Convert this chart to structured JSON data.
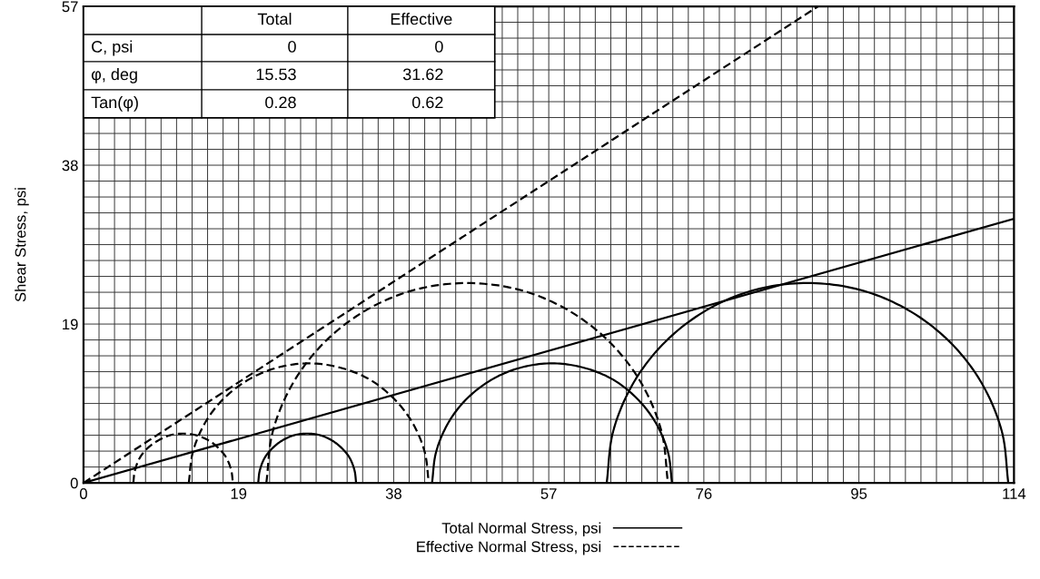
{
  "chart_data": {
    "type": "line",
    "ylabel": "Shear Stress, psi",
    "xlim": [
      0,
      114
    ],
    "ylim": [
      0,
      57
    ],
    "xticks": [
      0,
      {
        "value": 1.9,
        "label": null
      },
      {
        "value": 3.8,
        "label": null
      },
      {
        "value": 5.7,
        "label": null
      },
      {
        "value": 7.6,
        "label": null
      },
      {
        "value": 9.5,
        "label": null
      },
      {
        "value": 11.4,
        "label": null
      },
      {
        "value": 13.3,
        "label": null
      },
      {
        "value": 15.2,
        "label": null
      },
      {
        "value": 17.1,
        "label": null
      },
      19,
      {
        "value": 20.9,
        "label": null
      },
      {
        "value": 22.8,
        "label": null
      },
      {
        "value": 24.7,
        "label": null
      },
      {
        "value": 26.6,
        "label": null
      },
      {
        "value": 28.5,
        "label": null
      },
      {
        "value": 30.4,
        "label": null
      },
      {
        "value": 32.3,
        "label": null
      },
      {
        "value": 34.2,
        "label": null
      },
      {
        "value": 36.1,
        "label": null
      },
      38,
      {
        "value": 39.9,
        "label": null
      },
      {
        "value": 41.8,
        "label": null
      },
      {
        "value": 43.7,
        "label": null
      },
      {
        "value": 45.6,
        "label": null
      },
      {
        "value": 47.5,
        "label": null
      },
      {
        "value": 49.4,
        "label": null
      },
      {
        "value": 51.3,
        "label": null
      },
      {
        "value": 53.2,
        "label": null
      },
      {
        "value": 55.1,
        "label": null
      },
      57,
      {
        "value": 58.9,
        "label": null
      },
      {
        "value": 60.8,
        "label": null
      },
      {
        "value": 62.7,
        "label": null
      },
      {
        "value": 64.6,
        "label": null
      },
      {
        "value": 66.5,
        "label": null
      },
      {
        "value": 68.4,
        "label": null
      },
      {
        "value": 70.3,
        "label": null
      },
      {
        "value": 72.2,
        "label": null
      },
      {
        "value": 74.1,
        "label": null
      },
      76,
      {
        "value": 77.9,
        "label": null
      },
      {
        "value": 79.8,
        "label": null
      },
      {
        "value": 81.7,
        "label": null
      },
      {
        "value": 83.6,
        "label": null
      },
      {
        "value": 85.5,
        "label": null
      },
      {
        "value": 87.4,
        "label": null
      },
      {
        "value": 89.3,
        "label": null
      },
      {
        "value": 91.2,
        "label": null
      },
      {
        "value": 93.1,
        "label": null
      },
      95,
      {
        "value": 96.9,
        "label": null
      },
      {
        "value": 98.8,
        "label": null
      },
      {
        "value": 100.7,
        "label": null
      },
      {
        "value": 102.6,
        "label": null
      },
      {
        "value": 104.5,
        "label": null
      },
      {
        "value": 106.4,
        "label": null
      },
      {
        "value": 108.3,
        "label": null
      },
      {
        "value": 110.2,
        "label": null
      },
      {
        "value": 112.1,
        "label": null
      },
      114
    ],
    "yticks": [
      0,
      {
        "value": 1.9,
        "label": null
      },
      {
        "value": 3.8,
        "label": null
      },
      {
        "value": 5.7,
        "label": null
      },
      {
        "value": 7.6,
        "label": null
      },
      {
        "value": 9.5,
        "label": null
      },
      {
        "value": 11.4,
        "label": null
      },
      {
        "value": 13.3,
        "label": null
      },
      {
        "value": 15.2,
        "label": null
      },
      {
        "value": 17.1,
        "label": null
      },
      19,
      {
        "value": 20.9,
        "label": null
      },
      {
        "value": 22.8,
        "label": null
      },
      {
        "value": 24.7,
        "label": null
      },
      {
        "value": 26.6,
        "label": null
      },
      {
        "value": 28.5,
        "label": null
      },
      {
        "value": 30.4,
        "label": null
      },
      {
        "value": 32.3,
        "label": null
      },
      {
        "value": 34.2,
        "label": null
      },
      {
        "value": 36.1,
        "label": null
      },
      38,
      {
        "value": 39.9,
        "label": null
      },
      {
        "value": 41.8,
        "label": null
      },
      {
        "value": 43.7,
        "label": null
      },
      {
        "value": 45.6,
        "label": null
      },
      {
        "value": 47.5,
        "label": null
      },
      {
        "value": 49.4,
        "label": null
      },
      {
        "value": 51.3,
        "label": null
      },
      {
        "value": 53.2,
        "label": null
      },
      {
        "value": 55.1,
        "label": null
      },
      57
    ],
    "grid": true,
    "legend": "bottom",
    "series": [
      {
        "name": "Total Normal Stress, psi",
        "color": "#000000",
        "line_style": "solid",
        "x": [
          0,
          114
        ],
        "values": [
          0,
          31.6
        ]
      },
      {
        "name": "Effective Normal Stress, psi",
        "color": "#000000",
        "line_style": "dashed",
        "x": [
          0,
          90.0
        ],
        "values": [
          0,
          57
        ]
      },
      {
        "color": "#000000",
        "line_style": "dashed",
        "x": [
          6.1,
          6.3,
          6.9,
          7.9,
          9.2,
          10.6,
          12.2,
          13.8,
          15.3,
          16.5,
          17.5,
          18.1,
          18.3
        ],
        "values": [
          0,
          1.5,
          3.0,
          4.2,
          5.1,
          5.7,
          5.9,
          5.7,
          5.1,
          4.2,
          3.0,
          1.5,
          0
        ]
      },
      {
        "color": "#000000",
        "line_style": "solid",
        "x": [
          21.4,
          21.6,
          22.2,
          23.2,
          24.4,
          25.8,
          27.4,
          29.0,
          30.4,
          31.6,
          32.6,
          33.2,
          33.4
        ],
        "values": [
          0,
          1.5,
          3.0,
          4.2,
          5.1,
          5.7,
          5.9,
          5.7,
          5.1,
          4.2,
          3.0,
          1.5,
          0
        ]
      },
      {
        "color": "#000000",
        "line_style": "dashed",
        "x": [
          12.9,
          13.4,
          14.9,
          17.2,
          20.3,
          23.8,
          27.6,
          31.4,
          35.0,
          38.0,
          40.3,
          41.8,
          42.3
        ],
        "values": [
          0,
          3.7,
          7.2,
          10.1,
          12.4,
          13.8,
          14.3,
          13.8,
          12.4,
          10.1,
          7.2,
          3.7,
          0
        ]
      },
      {
        "color": "#000000",
        "line_style": "dashed",
        "x": [
          22.4,
          23.2,
          25.7,
          29.6,
          34.7,
          40.6,
          47.0,
          53.4,
          59.3,
          64.4,
          68.3,
          70.8,
          71.6
        ],
        "values": [
          0,
          6.2,
          12.0,
          16.9,
          20.7,
          23.1,
          23.9,
          23.1,
          20.7,
          16.9,
          12.0,
          6.2,
          0
        ]
      },
      {
        "color": "#000000",
        "line_style": "solid",
        "x": [
          42.7,
          43.2,
          44.7,
          47.0,
          50.1,
          53.6,
          57.4,
          61.2,
          64.8,
          67.8,
          70.1,
          71.6,
          72.1
        ],
        "values": [
          0,
          3.7,
          7.2,
          10.1,
          12.4,
          13.8,
          14.3,
          13.8,
          12.4,
          10.1,
          7.2,
          3.7,
          0
        ]
      },
      {
        "color": "#000000",
        "line_style": "solid",
        "x": [
          64.1,
          64.9,
          67.4,
          71.3,
          76.4,
          82.3,
          88.7,
          95.1,
          101.0,
          106.1,
          110.0,
          112.5,
          113.3
        ],
        "values": [
          0,
          6.2,
          12.0,
          16.9,
          20.7,
          23.1,
          23.9,
          23.1,
          20.7,
          16.9,
          12.0,
          6.2,
          0
        ]
      }
    ],
    "annotations": [
      "Total",
      "Effective",
      "C, psi",
      "0",
      "0",
      "φ, deg",
      "15.53",
      "31.62",
      "Tan(φ)",
      "0.28",
      "0.62"
    ]
  }
}
